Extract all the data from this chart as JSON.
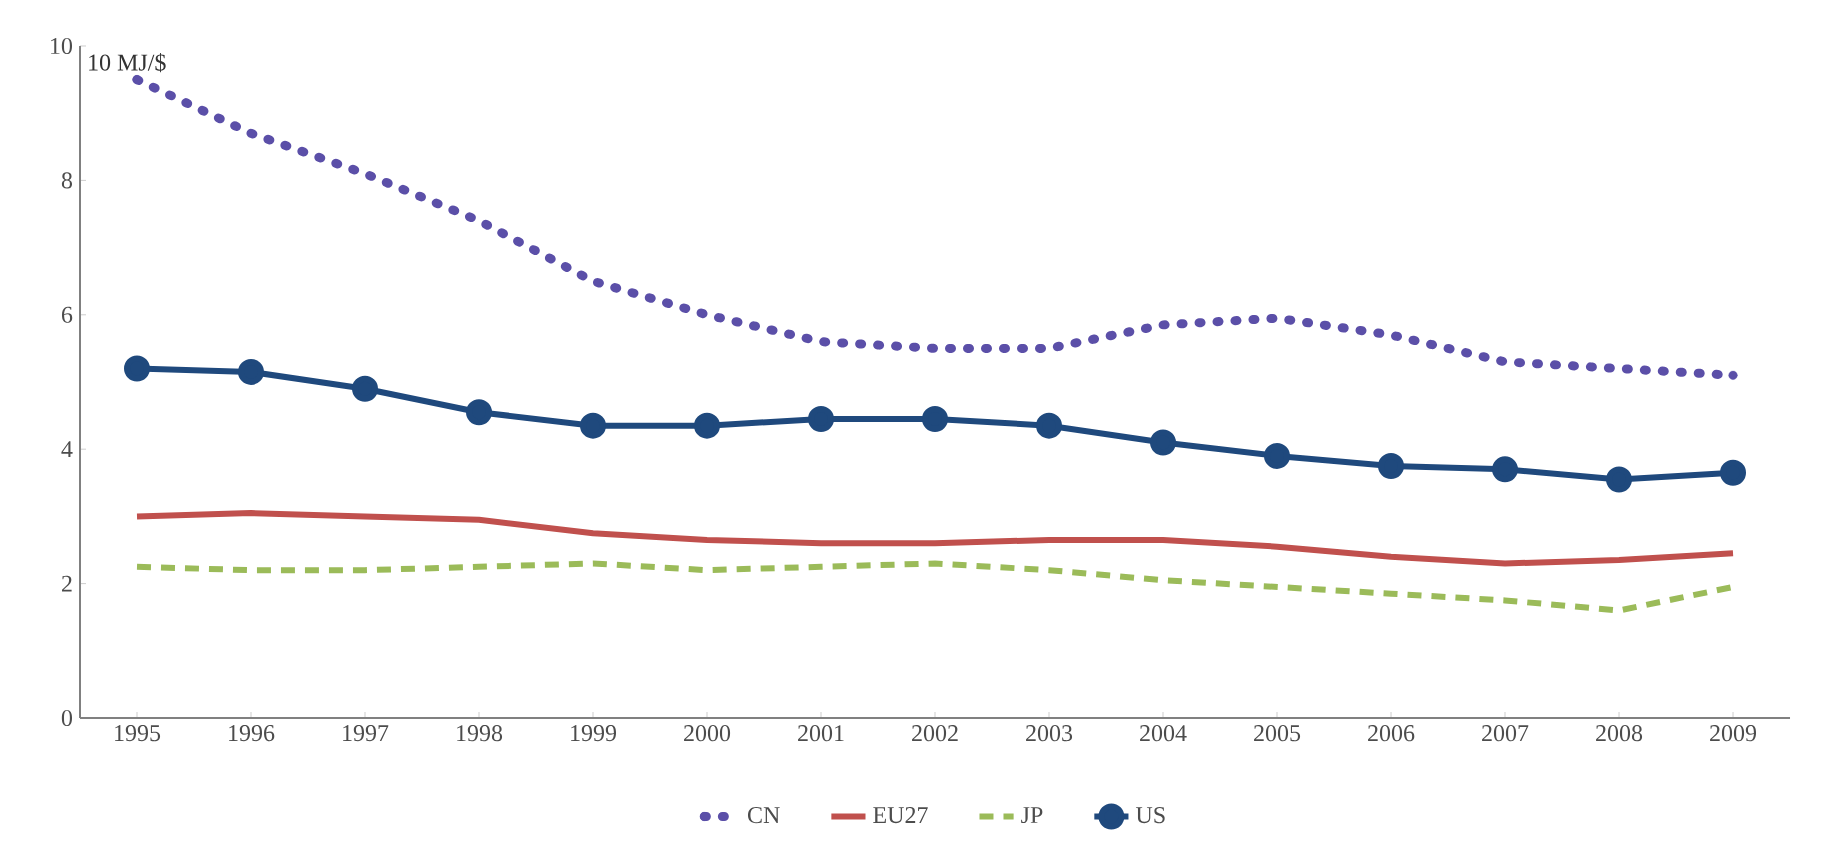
{
  "chart_data": {
    "type": "line",
    "ylabel": "10 MJ/$",
    "categories": [
      "1995",
      "1996",
      "1997",
      "1998",
      "1999",
      "2000",
      "2001",
      "2002",
      "2003",
      "2004",
      "2005",
      "2006",
      "2007",
      "2008",
      "2009"
    ],
    "series": [
      {
        "name": "CN",
        "color": "#5b4fa8",
        "line_style": "dotted",
        "values": [
          9.5,
          8.7,
          8.1,
          7.4,
          6.5,
          6.0,
          5.6,
          5.5,
          5.5,
          5.85,
          5.95,
          5.7,
          5.3,
          5.2,
          5.1
        ]
      },
      {
        "name": "EU27",
        "color": "#c0504d",
        "values": [
          3.0,
          3.05,
          3.0,
          2.95,
          2.75,
          2.65,
          2.6,
          2.6,
          2.65,
          2.65,
          2.55,
          2.4,
          2.3,
          2.35,
          2.45
        ]
      },
      {
        "name": "JP",
        "color": "#9bbb59",
        "line_style": "dashed",
        "values": [
          2.25,
          2.2,
          2.2,
          2.25,
          2.3,
          2.2,
          2.25,
          2.3,
          2.2,
          2.05,
          1.95,
          1.85,
          1.75,
          1.6,
          1.95
        ]
      },
      {
        "name": "US",
        "color": "#1f497d",
        "marker": "circle",
        "values": [
          5.2,
          5.15,
          4.9,
          4.55,
          4.35,
          4.35,
          4.45,
          4.45,
          4.35,
          4.1,
          3.9,
          3.75,
          3.7,
          3.55,
          3.65
        ]
      }
    ],
    "ylim": [
      0,
      10
    ],
    "yticks": [
      0,
      2,
      4,
      6,
      8,
      10
    ],
    "grid": false,
    "legend": "bottom",
    "line_style": "solid",
    "marker": "none"
  }
}
